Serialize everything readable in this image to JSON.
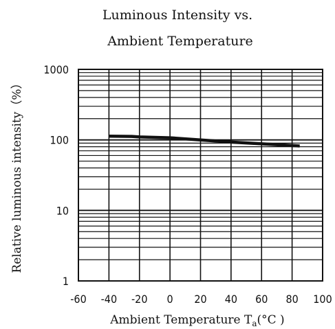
{
  "chart_data": {
    "type": "line",
    "title_line1": "Luminous Intensity vs.",
    "title_line2": "Ambient Temperature",
    "xlabel": "Ambient Temperature T",
    "xlabel_sub": "a",
    "xlabel_unit": "(°C )",
    "ylabel": "Relative luminous intensity（%）",
    "x_ticks": [
      "-60",
      "-40",
      "-20",
      "0",
      "20",
      "40",
      "60",
      "80",
      "100"
    ],
    "y_ticks": [
      "1000",
      "100",
      "10",
      "1"
    ],
    "xlim": [
      -60,
      100
    ],
    "ylim": [
      1,
      1000
    ],
    "yscale": "log",
    "grid": true,
    "x": [
      -40,
      -25,
      -20,
      0,
      20,
      40,
      60,
      85
    ],
    "values": [
      113,
      112,
      110,
      107,
      100,
      93,
      88,
      82
    ]
  }
}
